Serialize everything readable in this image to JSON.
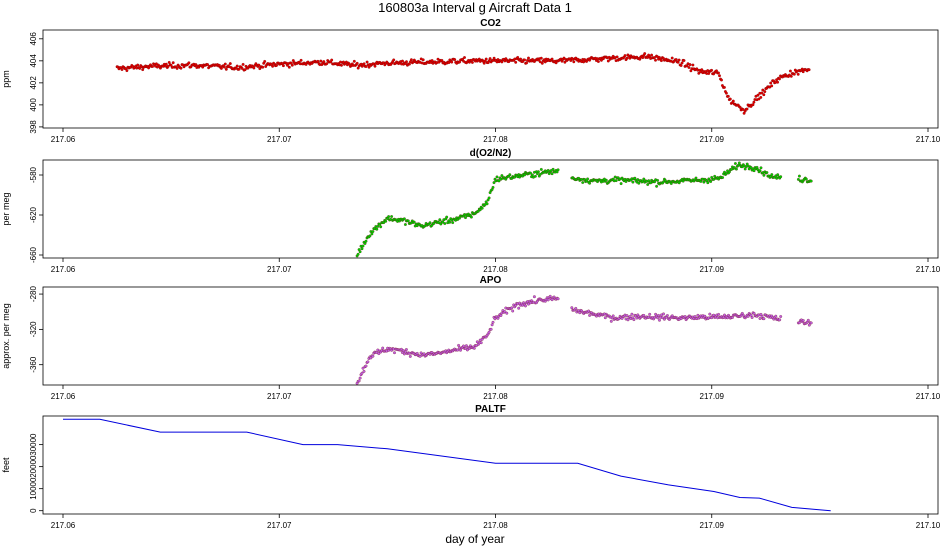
{
  "figure": {
    "title": "160803a   Interval g Aircraft Data 1",
    "xlabel": "day of year"
  },
  "chart_data": [
    {
      "type": "scatter",
      "title": "CO2",
      "ylabel": "ppm",
      "xlim": [
        217.06,
        217.1
      ],
      "ylim": [
        397.9,
        406.8
      ],
      "yticks": [
        398,
        400,
        402,
        404,
        406
      ],
      "xticks": [
        217.06,
        217.07,
        217.08,
        217.09,
        217.1
      ],
      "xtick_labels": [
        "217.06",
        "217.07",
        "217.08",
        "217.09",
        "217.10"
      ],
      "color": "#e00000",
      "series": [
        {
          "x": [
            217.0625,
            217.064,
            217.066,
            217.068,
            217.07,
            217.072,
            217.0735,
            217.075,
            217.077,
            217.079,
            217.081,
            217.083,
            217.085,
            217.087,
            217.0885,
            217.0895,
            217.0903,
            217.0908,
            217.0915,
            217.0922,
            217.093,
            217.0937,
            217.0945
          ],
          "y": [
            403.3,
            403.5,
            403.6,
            403.4,
            403.7,
            403.9,
            403.6,
            403.8,
            403.9,
            404.0,
            404.0,
            404.0,
            404.2,
            404.4,
            403.9,
            403.0,
            402.9,
            400.5,
            399.5,
            400.8,
            402.3,
            402.9,
            403.2
          ]
        }
      ]
    },
    {
      "type": "scatter",
      "title": "d(O2/N2)",
      "ylabel": "per meg",
      "xlim": [
        217.06,
        217.1
      ],
      "ylim": [
        -663,
        -565
      ],
      "yticks": [
        -660,
        -620,
        -580
      ],
      "xticks": [
        217.06,
        217.07,
        217.08,
        217.09,
        217.1
      ],
      "xtick_labels": [
        "217.06",
        "217.07",
        "217.08",
        "217.09",
        "217.10"
      ],
      "color": "#00d000",
      "series": [
        {
          "x": [
            217.0736,
            217.0742,
            217.075,
            217.0758,
            217.0766,
            217.0774,
            217.0782,
            217.079,
            217.0796,
            217.08,
            217.081,
            217.082,
            217.0828,
            217.0836,
            217.0846,
            217.0856,
            217.0866,
            217.0876,
            217.0886,
            217.0896,
            217.0904,
            217.0912,
            217.092,
            217.0928,
            217.0936,
            217.0946
          ],
          "y": [
            -660,
            -638,
            -623,
            -626,
            -631,
            -627,
            -624,
            -619,
            -608,
            -584,
            -581,
            -578,
            -576,
            -583,
            -586,
            -585,
            -586,
            -587,
            -586,
            -585,
            -583,
            -570,
            -572,
            -582,
            -583,
            -585
          ]
        }
      ]
    },
    {
      "type": "scatter",
      "title": "APO",
      "ylabel": "approx. per meg",
      "xlim": [
        217.06,
        217.1
      ],
      "ylim": [
        -383,
        -272
      ],
      "yticks": [
        -360,
        -320,
        -280
      ],
      "xticks": [
        217.06,
        217.07,
        217.08,
        217.09,
        217.1
      ],
      "xtick_labels": [
        "217.06",
        "217.07",
        "217.08",
        "217.09",
        "217.10"
      ],
      "color": "#c060e0",
      "series": [
        {
          "x": [
            217.0736,
            217.0742,
            217.075,
            217.0758,
            217.0766,
            217.0774,
            217.0782,
            217.079,
            217.0796,
            217.08,
            217.081,
            217.082,
            217.0828,
            217.0836,
            217.0846,
            217.0856,
            217.0866,
            217.0876,
            217.0886,
            217.0896,
            217.0904,
            217.0912,
            217.092,
            217.0928,
            217.0936,
            217.0946
          ],
          "y": [
            -381,
            -350,
            -342,
            -345,
            -349,
            -347,
            -343,
            -340,
            -328,
            -307,
            -292,
            -287,
            -285,
            -298,
            -303,
            -307,
            -305,
            -306,
            -307,
            -306,
            -306,
            -305,
            -303,
            -307,
            -310,
            -313
          ]
        }
      ]
    },
    {
      "type": "line",
      "title": "PALTF",
      "ylabel": "feet",
      "xlim": [
        217.06,
        217.1
      ],
      "ylim": [
        -1500,
        43000
      ],
      "yticks": [
        0,
        10000,
        20000,
        30000
      ],
      "xticks": [
        217.06,
        217.07,
        217.08,
        217.09,
        217.1
      ],
      "xtick_labels": [
        "217.06",
        "217.07",
        "217.08",
        "217.09",
        "217.10"
      ],
      "color": "#0000dd",
      "series": [
        {
          "x": [
            217.06,
            217.0617,
            217.0645,
            217.0685,
            217.0711,
            217.0727,
            217.075,
            217.08,
            217.0838,
            217.0858,
            217.088,
            217.0901,
            217.0913,
            217.0922,
            217.0937,
            217.0955
          ],
          "y": [
            41500,
            41500,
            35700,
            35700,
            30000,
            30000,
            28100,
            21500,
            21500,
            15700,
            11700,
            8700,
            6000,
            5700,
            1500,
            0
          ]
        }
      ]
    }
  ]
}
